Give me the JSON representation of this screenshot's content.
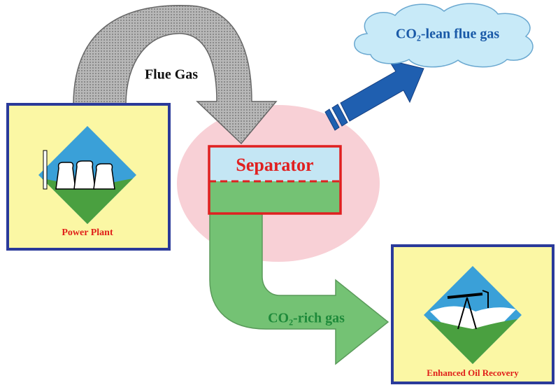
{
  "labels": {
    "flue_gas": "Flue Gas",
    "lean_gas": "CO₂-lean flue gas",
    "separator": "Separator",
    "rich_gas": "CO₂-rich gas"
  },
  "nodes": [
    {
      "label": "Power Plant"
    },
    {
      "label": "Enhanced Oil Recovery"
    }
  ]
}
